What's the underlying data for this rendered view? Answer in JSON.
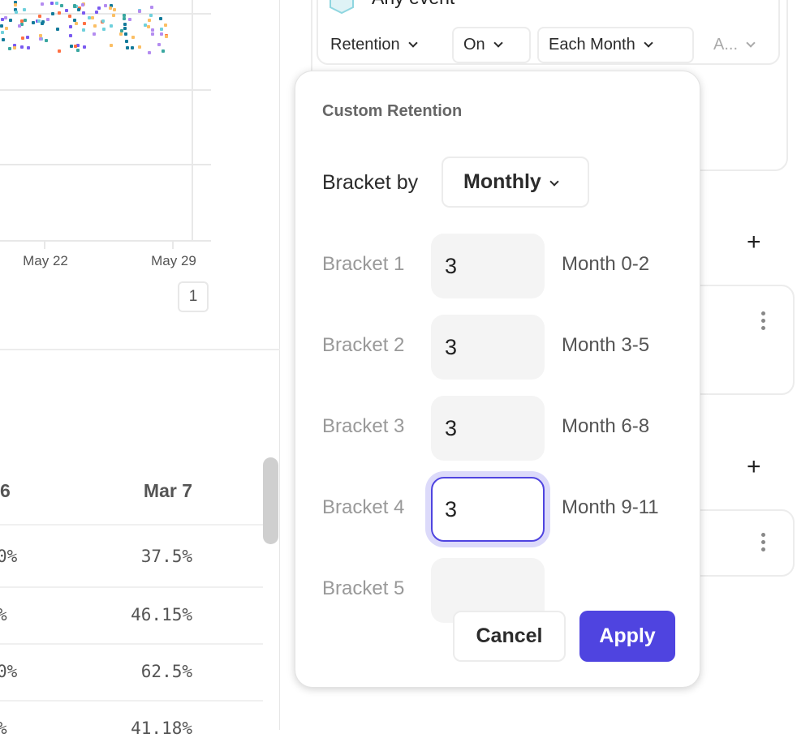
{
  "chart": {
    "x_ticks": [
      "May 22",
      "May 29"
    ],
    "pagination_page": "1",
    "dot_colors": [
      "#6fd0dc",
      "#fbbf64",
      "#b48cf0",
      "#127a9a",
      "#7a5af0",
      "#ff7043",
      "#3aa7a0"
    ]
  },
  "table": {
    "headers": [
      "6",
      "Mar 7"
    ],
    "rows": [
      [
        "0%",
        "37.5%"
      ],
      [
        "%",
        "46.15%"
      ],
      [
        "0%",
        "62.5%"
      ],
      [
        "%",
        "41.18%"
      ]
    ]
  },
  "query_card": {
    "event_label": "Any event",
    "event_icon": "hexagon-icon",
    "retention_label": "Retention",
    "on_label": "On",
    "each_month_label": "Each Month",
    "truncated_label": "A..."
  },
  "popup": {
    "title": "Custom Retention",
    "bracket_by_label": "Bracket by",
    "bracket_by_value": "Monthly",
    "brackets": [
      {
        "label": "Bracket 1",
        "value": "3",
        "range": "Month 0-2"
      },
      {
        "label": "Bracket 2",
        "value": "3",
        "range": "Month 3-5"
      },
      {
        "label": "Bracket 3",
        "value": "3",
        "range": "Month 6-8"
      },
      {
        "label": "Bracket 4",
        "value": "3",
        "range": "Month 9-11"
      },
      {
        "label": "Bracket 5",
        "value": "",
        "range": ""
      }
    ],
    "cancel_label": "Cancel",
    "apply_label": "Apply",
    "accent_color": "#4f44e0"
  }
}
